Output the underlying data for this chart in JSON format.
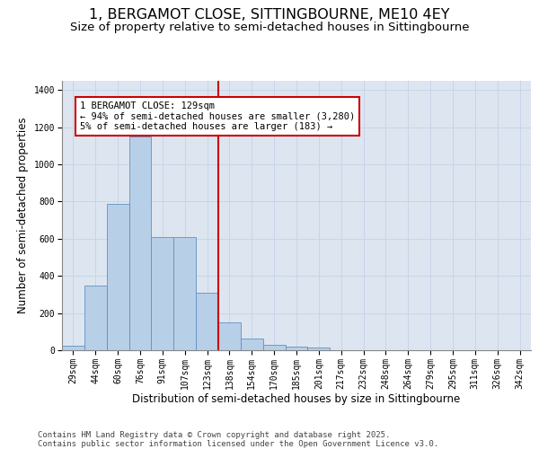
{
  "title": "1, BERGAMOT CLOSE, SITTINGBOURNE, ME10 4EY",
  "subtitle": "Size of property relative to semi-detached houses in Sittingbourne",
  "xlabel": "Distribution of semi-detached houses by size in Sittingbourne",
  "ylabel": "Number of semi-detached properties",
  "bin_labels": [
    "29sqm",
    "44sqm",
    "60sqm",
    "76sqm",
    "91sqm",
    "107sqm",
    "123sqm",
    "138sqm",
    "154sqm",
    "170sqm",
    "185sqm",
    "201sqm",
    "217sqm",
    "232sqm",
    "248sqm",
    "264sqm",
    "279sqm",
    "295sqm",
    "311sqm",
    "326sqm",
    "342sqm"
  ],
  "bar_values": [
    25,
    350,
    790,
    1150,
    610,
    610,
    310,
    150,
    65,
    30,
    20,
    15,
    0,
    0,
    0,
    0,
    0,
    0,
    0,
    0,
    0
  ],
  "bar_color": "#b8cfe8",
  "bar_edge_color": "#6090c0",
  "grid_color": "#c8d4e8",
  "background_color": "#dde6f0",
  "vline_x": 6.5,
  "vline_color": "#cc0000",
  "annotation_text": "1 BERGAMOT CLOSE: 129sqm\n← 94% of semi-detached houses are smaller (3,280)\n5% of semi-detached houses are larger (183) →",
  "footer_text": "Contains HM Land Registry data © Crown copyright and database right 2025.\nContains public sector information licensed under the Open Government Licence v3.0.",
  "ylim": [
    0,
    1450
  ],
  "yticks": [
    0,
    200,
    400,
    600,
    800,
    1000,
    1200,
    1400
  ],
  "title_fontsize": 11.5,
  "subtitle_fontsize": 9.5,
  "axis_label_fontsize": 8.5,
  "tick_fontsize": 7,
  "annotation_fontsize": 7.5,
  "footer_fontsize": 6.5
}
